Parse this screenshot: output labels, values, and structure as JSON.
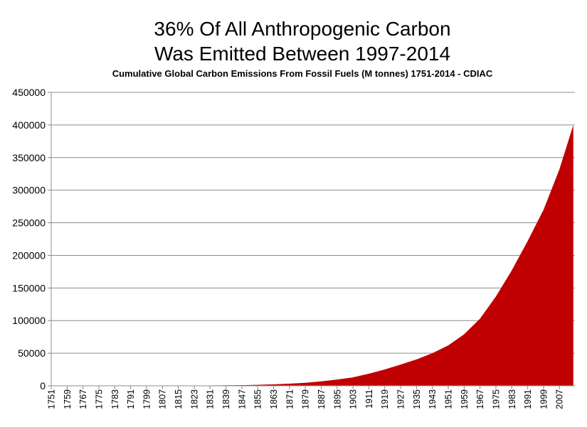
{
  "chart_data": {
    "type": "area",
    "title_lines": [
      "36% Of All Anthropogenic Carbon",
      "Was Emitted Between 1997-2014"
    ],
    "subtitle": "Cumulative Global Carbon Emissions From Fossil Fuels (M tonnes) 1751-2014  - CDIAC",
    "xlabel": "",
    "ylabel": "",
    "ylim": [
      0,
      450000
    ],
    "yticks": [
      0,
      50000,
      100000,
      150000,
      200000,
      250000,
      300000,
      350000,
      400000,
      450000
    ],
    "xlim": [
      1751,
      2014
    ],
    "xtick_labels": [
      1751,
      1759,
      1767,
      1775,
      1783,
      1791,
      1799,
      1807,
      1815,
      1823,
      1831,
      1839,
      1847,
      1855,
      1863,
      1871,
      1879,
      1887,
      1895,
      1903,
      1911,
      1919,
      1927,
      1935,
      1943,
      1951,
      1959,
      1967,
      1975,
      1983,
      1991,
      1999,
      2007
    ],
    "grid": true,
    "legend": "none",
    "fill_color": "#C00000",
    "series": [
      {
        "x": [
          1751,
          1800,
          1830,
          1847,
          1855,
          1863,
          1871,
          1879,
          1887,
          1895,
          1903,
          1911,
          1919,
          1927,
          1935,
          1943,
          1951,
          1959,
          1967,
          1975,
          1983,
          1991,
          1999,
          2007,
          2014
        ],
        "values": [
          0,
          200,
          500,
          1000,
          1500,
          2200,
          3200,
          4700,
          6800,
          9500,
          13000,
          18500,
          25000,
          32500,
          40500,
          50000,
          62000,
          79000,
          103000,
          137000,
          177000,
          222000,
          270000,
          332000,
          400000
        ]
      }
    ]
  }
}
